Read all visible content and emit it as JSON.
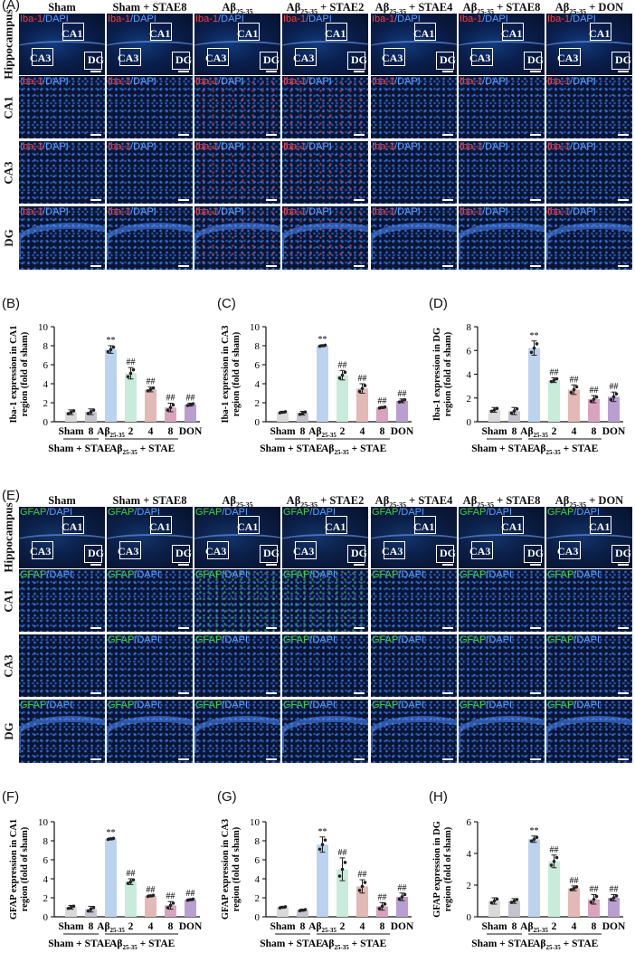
{
  "panel_letters": [
    "(A)",
    "(B)",
    "(C)",
    "(D)",
    "(E)",
    "(F)",
    "(G)",
    "(H)"
  ],
  "column_headers": [
    {
      "main": "Sham",
      "sub": "",
      "tail": ""
    },
    {
      "main": "Sham + STAE8",
      "sub": "",
      "tail": ""
    },
    {
      "main": "Aβ",
      "sub": "25-35",
      "tail": ""
    },
    {
      "main": "Aβ",
      "sub": "25-35",
      "tail": " + STAE2"
    },
    {
      "main": "Aβ",
      "sub": "25-35",
      "tail": " + STAE4"
    },
    {
      "main": "Aβ",
      "sub": "25-35",
      "tail": " + STAE8"
    },
    {
      "main": "Aβ",
      "sub": "25-35",
      "tail": " + DON"
    }
  ],
  "row_labels": [
    "Hippocampus",
    "CA1",
    "CA3",
    "DG"
  ],
  "region_box_labels": [
    "CA1",
    "CA3",
    "DG"
  ],
  "iba_stain": {
    "marker": "Iba-1",
    "sep": "/",
    "nuc": "DAPI"
  },
  "gfap_stain": {
    "marker": "GFAP",
    "sep": "/",
    "nuc": "DAPI"
  },
  "colors": {
    "bars": [
      "#d9d9d9",
      "#c4c4cf",
      "#bcd3ef",
      "#c8ebdc",
      "#e3b9b5",
      "#d9a3bf",
      "#b99fd1"
    ],
    "iba_red": "#ff3b3b",
    "gfap_green": "#3fd04a",
    "dapi_blue": "#5aa0ff"
  },
  "x_tick_labels": [
    "Sham",
    "8",
    "Aβ",
    "2",
    "4",
    "8",
    "DON"
  ],
  "x_tick_sub": "25-35",
  "group_label_left": "Sham + STAE",
  "group_label_right": {
    "main": "Aβ",
    "sub": "25-35",
    "tail": " + STAE"
  },
  "chart_data": [
    {
      "type": "bar",
      "panel": "(B)",
      "ylabel": [
        "Iba-1 expression in CA1",
        "region (fold of sham)"
      ],
      "ylim": [
        0,
        10
      ],
      "yticks": [
        0,
        2,
        4,
        6,
        8,
        10
      ],
      "values": [
        1.0,
        1.05,
        7.6,
        5.1,
        3.4,
        1.5,
        1.8
      ],
      "errors": [
        0.25,
        0.3,
        0.4,
        0.6,
        0.25,
        0.45,
        0.15
      ],
      "annotations": [
        "",
        "",
        "**",
        "##",
        "##",
        "##",
        "##"
      ]
    },
    {
      "type": "bar",
      "panel": "(C)",
      "ylabel": [
        "Iba-1 expression in CA3",
        "region (fold of sham)"
      ],
      "ylim": [
        0,
        10
      ],
      "yticks": [
        0,
        2,
        4,
        6,
        8,
        10
      ],
      "values": [
        1.0,
        0.9,
        8.0,
        4.9,
        3.5,
        1.5,
        2.2
      ],
      "errors": [
        0.1,
        0.2,
        0.1,
        0.5,
        0.5,
        0.1,
        0.2
      ],
      "annotations": [
        "",
        "",
        "**",
        "##",
        "##",
        "##",
        "##"
      ]
    },
    {
      "type": "bar",
      "panel": "(D)",
      "ylabel": [
        "Iba-1 expression in DG",
        "region (fold of sham)"
      ],
      "ylim": [
        0,
        8
      ],
      "yticks": [
        0,
        2,
        4,
        6,
        8
      ],
      "values": [
        1.0,
        0.9,
        6.2,
        3.5,
        2.7,
        1.9,
        2.1
      ],
      "errors": [
        0.2,
        0.3,
        0.6,
        0.2,
        0.4,
        0.3,
        0.4
      ],
      "annotations": [
        "",
        "",
        "**",
        "##",
        "##",
        "##",
        "##"
      ]
    },
    {
      "type": "bar",
      "panel": "(F)",
      "ylabel": [
        "GFAP expression in CA1",
        "region (fold of sham)"
      ],
      "ylim": [
        0,
        10
      ],
      "yticks": [
        0,
        2,
        4,
        6,
        8,
        10
      ],
      "values": [
        1.0,
        0.8,
        8.2,
        3.7,
        2.2,
        1.2,
        1.8
      ],
      "errors": [
        0.2,
        0.3,
        0.1,
        0.3,
        0.1,
        0.4,
        0.1
      ],
      "annotations": [
        "",
        "",
        "**",
        "##",
        "##",
        "##",
        "##"
      ]
    },
    {
      "type": "bar",
      "panel": "(G)",
      "ylabel": [
        "GFAP expression in CA3",
        "region (fold of sham)"
      ],
      "ylim": [
        0,
        10
      ],
      "yticks": [
        0,
        2,
        4,
        6,
        8,
        10
      ],
      "values": [
        1.0,
        0.7,
        7.6,
        5.0,
        3.2,
        1.1,
        2.1
      ],
      "errors": [
        0.1,
        0.1,
        0.8,
        1.2,
        0.7,
        0.4,
        0.4
      ],
      "annotations": [
        "",
        "",
        "**",
        "##",
        "##",
        "##",
        "##"
      ]
    },
    {
      "type": "bar",
      "panel": "(H)",
      "ylabel": [
        "GFAP expression in DG",
        "region (fold of sham)"
      ],
      "ylim": [
        0,
        6
      ],
      "yticks": [
        0,
        2,
        4,
        6
      ],
      "values": [
        1.0,
        1.0,
        4.9,
        3.5,
        1.8,
        1.1,
        1.2
      ],
      "errors": [
        0.2,
        0.15,
        0.2,
        0.4,
        0.15,
        0.3,
        0.2
      ],
      "annotations": [
        "",
        "",
        "**",
        "##",
        "##",
        "##",
        "##"
      ]
    }
  ]
}
